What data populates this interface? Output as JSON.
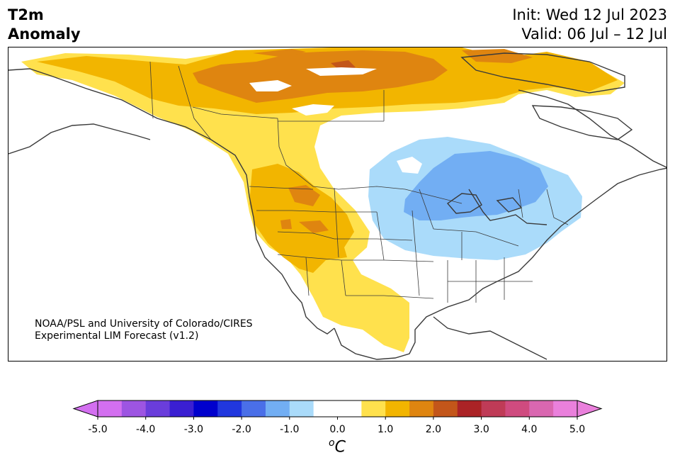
{
  "title": {
    "line1": "T2m",
    "line2": "Anomaly"
  },
  "init": {
    "line1": "Init: Wed 12 Jul 2023",
    "line2": "Valid: 06 Jul – 12 Jul"
  },
  "credit": {
    "line1": "NOAA/PSL and University of Colorado/CIRES",
    "line2": "Experimental LIM Forecast (v1.2)"
  },
  "colorbar": {
    "colors": [
      "#d36ff0",
      "#9d55e2",
      "#6a3ddb",
      "#3a1fd2",
      "#0000cd",
      "#2137de",
      "#4a6fe8",
      "#72aef3",
      "#aadbfa",
      "#ffffff",
      "#ffffff",
      "#ffe14d",
      "#f2b500",
      "#df8510",
      "#c3561a",
      "#ab2326",
      "#bf3b57",
      "#cf4b7f",
      "#d967b0",
      "#ea80dc"
    ],
    "ticks": [
      "-5.0",
      "-4.0",
      "-3.0",
      "-2.0",
      "-1.0",
      "0.0",
      "1.0",
      "2.0",
      "3.0",
      "4.0",
      "5.0"
    ],
    "unit_sup": "o",
    "unit": "C"
  }
}
